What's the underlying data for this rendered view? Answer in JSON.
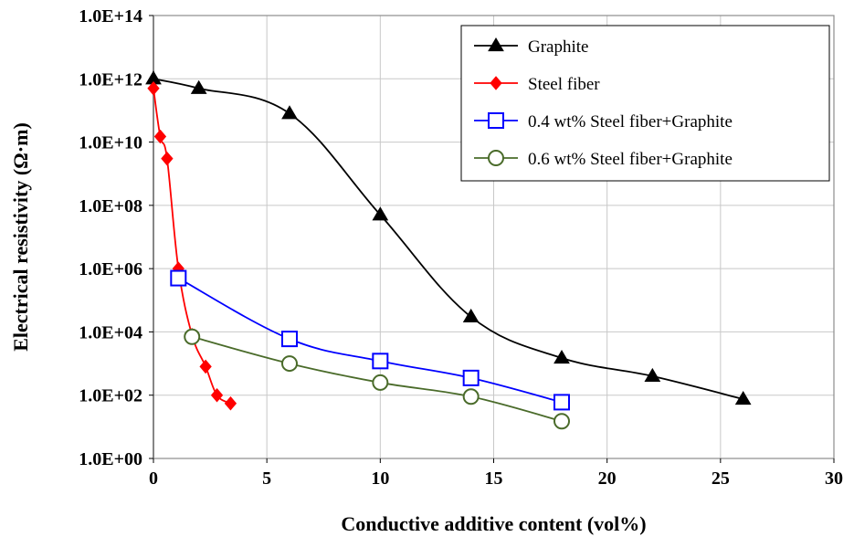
{
  "chart_data": {
    "type": "line",
    "xlabel": "Conductive additive content (vol%)",
    "ylabel": "Electrical resistivity (Ω·m)",
    "x_scale": "linear",
    "y_scale": "log",
    "xlim": [
      0,
      30
    ],
    "ylim": [
      1,
      100000000000000
    ],
    "x_ticks": [
      0,
      5,
      10,
      15,
      20,
      25,
      30
    ],
    "x_tick_labels": [
      "0",
      "5",
      "10",
      "15",
      "20",
      "25",
      "30"
    ],
    "y_ticks": [
      1,
      100,
      10000,
      1000000,
      100000000,
      10000000000,
      1000000000000,
      100000000000000
    ],
    "y_tick_labels": [
      "1.0E+00",
      "1.0E+02",
      "1.0E+04",
      "1.0E+06",
      "1.0E+08",
      "1.0E+10",
      "1.0E+12",
      "1.0E+14"
    ],
    "grid": true,
    "legend_position": "top-right",
    "series": [
      {
        "name": "Graphite",
        "color": "#000000",
        "line_color": "#000000",
        "marker": "triangle",
        "marker_fill": "#000000",
        "x": [
          0,
          2,
          6,
          10,
          14,
          18,
          22,
          26
        ],
        "y": [
          1000000000000,
          500000000000,
          80000000000,
          50000000,
          30000,
          1500,
          400,
          75
        ]
      },
      {
        "name": "Steel fiber",
        "color": "#ff0000",
        "line_color": "#ff0000",
        "marker": "diamond",
        "marker_fill": "#ff0000",
        "x": [
          0,
          0.3,
          0.6,
          1.1,
          1.7,
          2.3,
          2.8,
          3.4
        ],
        "y": [
          500000000000,
          15000000000,
          3000000000,
          1000000,
          8000,
          800,
          100,
          55
        ]
      },
      {
        "name": "0.4 wt% Steel fiber+Graphite",
        "color": "#0000ff",
        "line_color": "#0000ff",
        "marker": "square-open",
        "marker_fill": "none",
        "x": [
          1.1,
          6,
          10,
          14,
          18
        ],
        "y": [
          500000,
          6000,
          1200,
          350,
          60
        ]
      },
      {
        "name": "0.6 wt% Steel fiber+Graphite",
        "color": "#4a6b2a",
        "line_color": "#4a6b2a",
        "marker": "circle-open",
        "marker_fill": "none",
        "x": [
          1.7,
          6,
          10,
          14,
          18
        ],
        "y": [
          7000,
          1000,
          250,
          90,
          15
        ]
      }
    ]
  }
}
